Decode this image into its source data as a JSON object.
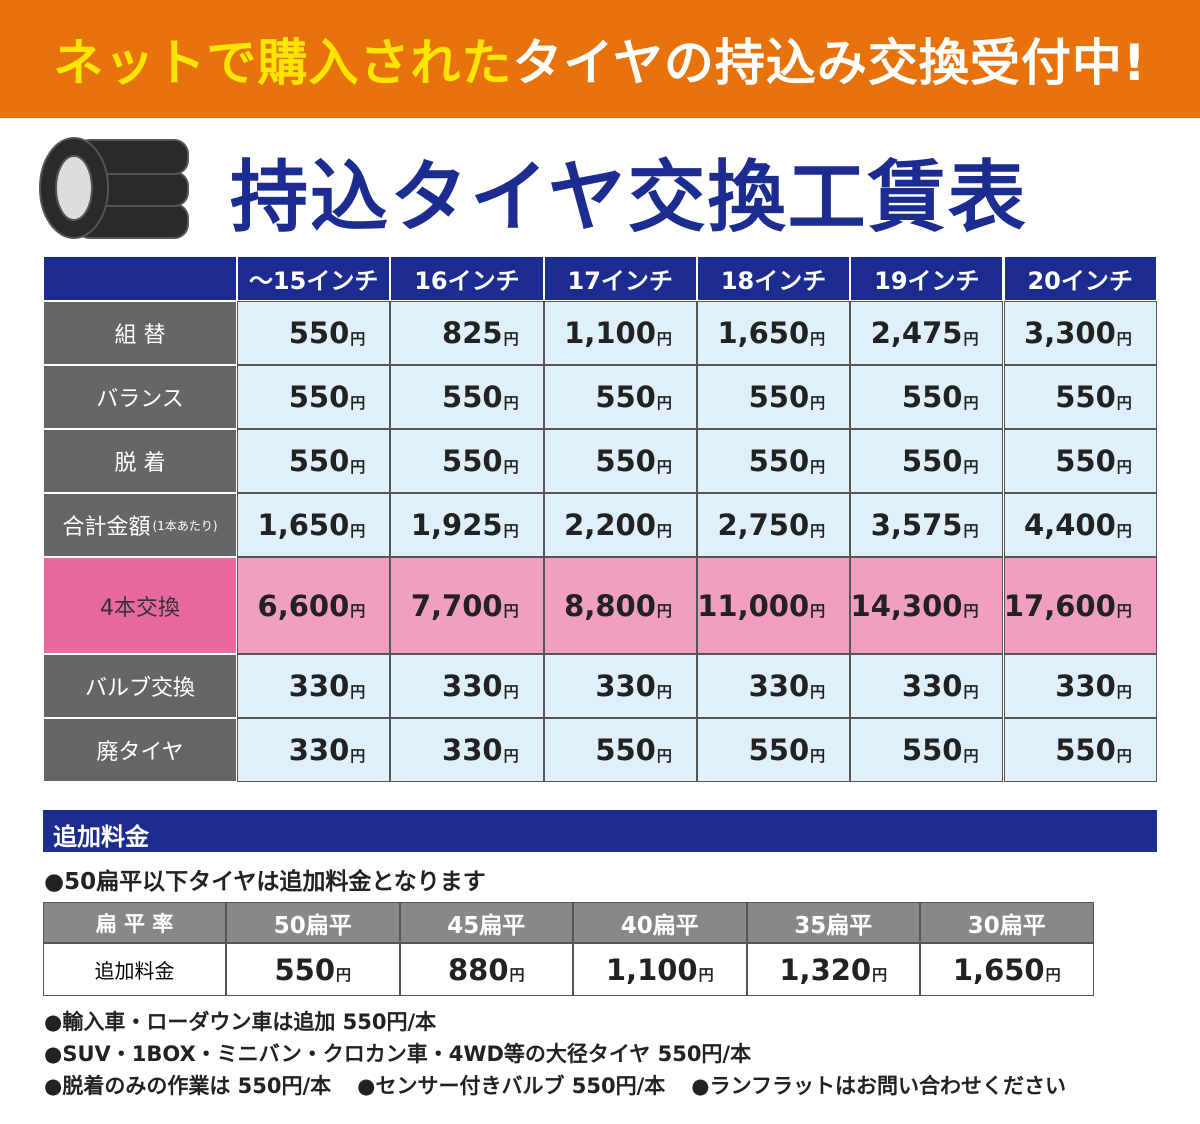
{
  "banner": {
    "part1": "ネットで購入された",
    "part2": "タイヤの持込み交換受付中!"
  },
  "title": "持込タイヤ交換工賃表",
  "unit": "円",
  "table": {
    "columns": [
      "～15インチ",
      "16インチ",
      "17インチ",
      "18インチ",
      "19インチ",
      "20インチ"
    ],
    "rows": [
      {
        "label": "組 替",
        "values": [
          "550",
          "825",
          "1,100",
          "1,650",
          "2,475",
          "3,300"
        ]
      },
      {
        "label": "バランス",
        "values": [
          "550",
          "550",
          "550",
          "550",
          "550",
          "550"
        ]
      },
      {
        "label": "脱 着",
        "values": [
          "550",
          "550",
          "550",
          "550",
          "550",
          "550"
        ]
      },
      {
        "label": "合計金額",
        "note": "(1本あたり)",
        "values": [
          "1,650",
          "1,925",
          "2,200",
          "2,750",
          "3,575",
          "4,400"
        ]
      },
      {
        "label": "4本交換",
        "values": [
          "6,600",
          "7,700",
          "8,800",
          "11,000",
          "14,300",
          "17,600"
        ]
      },
      {
        "label": "バルブ交換",
        "values": [
          "330",
          "330",
          "330",
          "330",
          "330",
          "330"
        ]
      },
      {
        "label": "廃タイヤ",
        "values": [
          "330",
          "330",
          "550",
          "550",
          "550",
          "550"
        ]
      }
    ]
  },
  "extra": {
    "heading": "追加料金",
    "note": "●50扁平以下タイヤは追加料金となります",
    "header_label": "扁 平 率",
    "columns": [
      "50扁平",
      "45扁平",
      "40扁平",
      "35扁平",
      "30扁平"
    ],
    "row_label": "追加料金",
    "values": [
      "550",
      "880",
      "1,100",
      "1,320",
      "1,650"
    ]
  },
  "footnotes": [
    [
      "●輸入車・ローダウン車は追加 550円/本"
    ],
    [
      "●SUV・1BOX・ミニバン・クロカン車・4WD等の大径タイヤ 550円/本"
    ],
    [
      "●脱着のみの作業は 550円/本",
      "●センサー付きバルブ 550円/本",
      "●ランフラットはお問い合わせください"
    ]
  ]
}
